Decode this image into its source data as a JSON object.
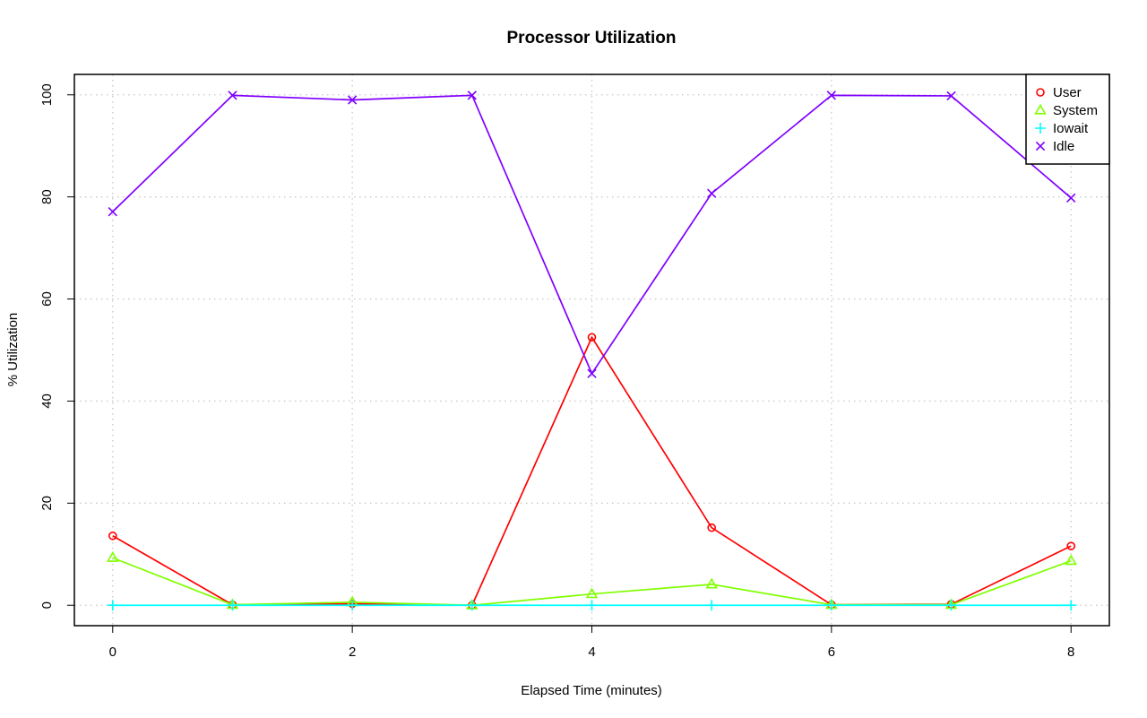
{
  "chart_data": {
    "type": "line",
    "title": "Processor Utilization",
    "xlabel": "Elapsed Time (minutes)",
    "ylabel": "% Utilization",
    "x": [
      0,
      1,
      2,
      3,
      4,
      5,
      6,
      7,
      8
    ],
    "xlim": [
      -0.32,
      8.32
    ],
    "ylim": [
      -4,
      104
    ],
    "x_ticks": [
      0,
      2,
      4,
      6,
      8
    ],
    "y_ticks": [
      0,
      20,
      40,
      60,
      80,
      100
    ],
    "grid": true,
    "legend_position": "top-right",
    "series": [
      {
        "name": "User",
        "marker": "circle",
        "color": "#ff0000",
        "values": [
          13.6,
          0.1,
          0.3,
          0.0,
          52.5,
          15.2,
          0.1,
          0.2,
          11.6
        ]
      },
      {
        "name": "System",
        "marker": "triangle",
        "color": "#80ff00",
        "values": [
          9.3,
          0.1,
          0.6,
          0.0,
          2.2,
          4.1,
          0.1,
          0.1,
          8.7
        ]
      },
      {
        "name": "Iowait",
        "marker": "plus",
        "color": "#00ffff",
        "values": [
          0,
          0,
          0,
          0,
          0,
          0,
          0,
          0,
          0
        ]
      },
      {
        "name": "Idle",
        "marker": "cross",
        "color": "#8000ff",
        "values": [
          77.1,
          99.9,
          99.0,
          99.9,
          45.4,
          80.7,
          99.9,
          99.8,
          79.8
        ]
      }
    ]
  }
}
